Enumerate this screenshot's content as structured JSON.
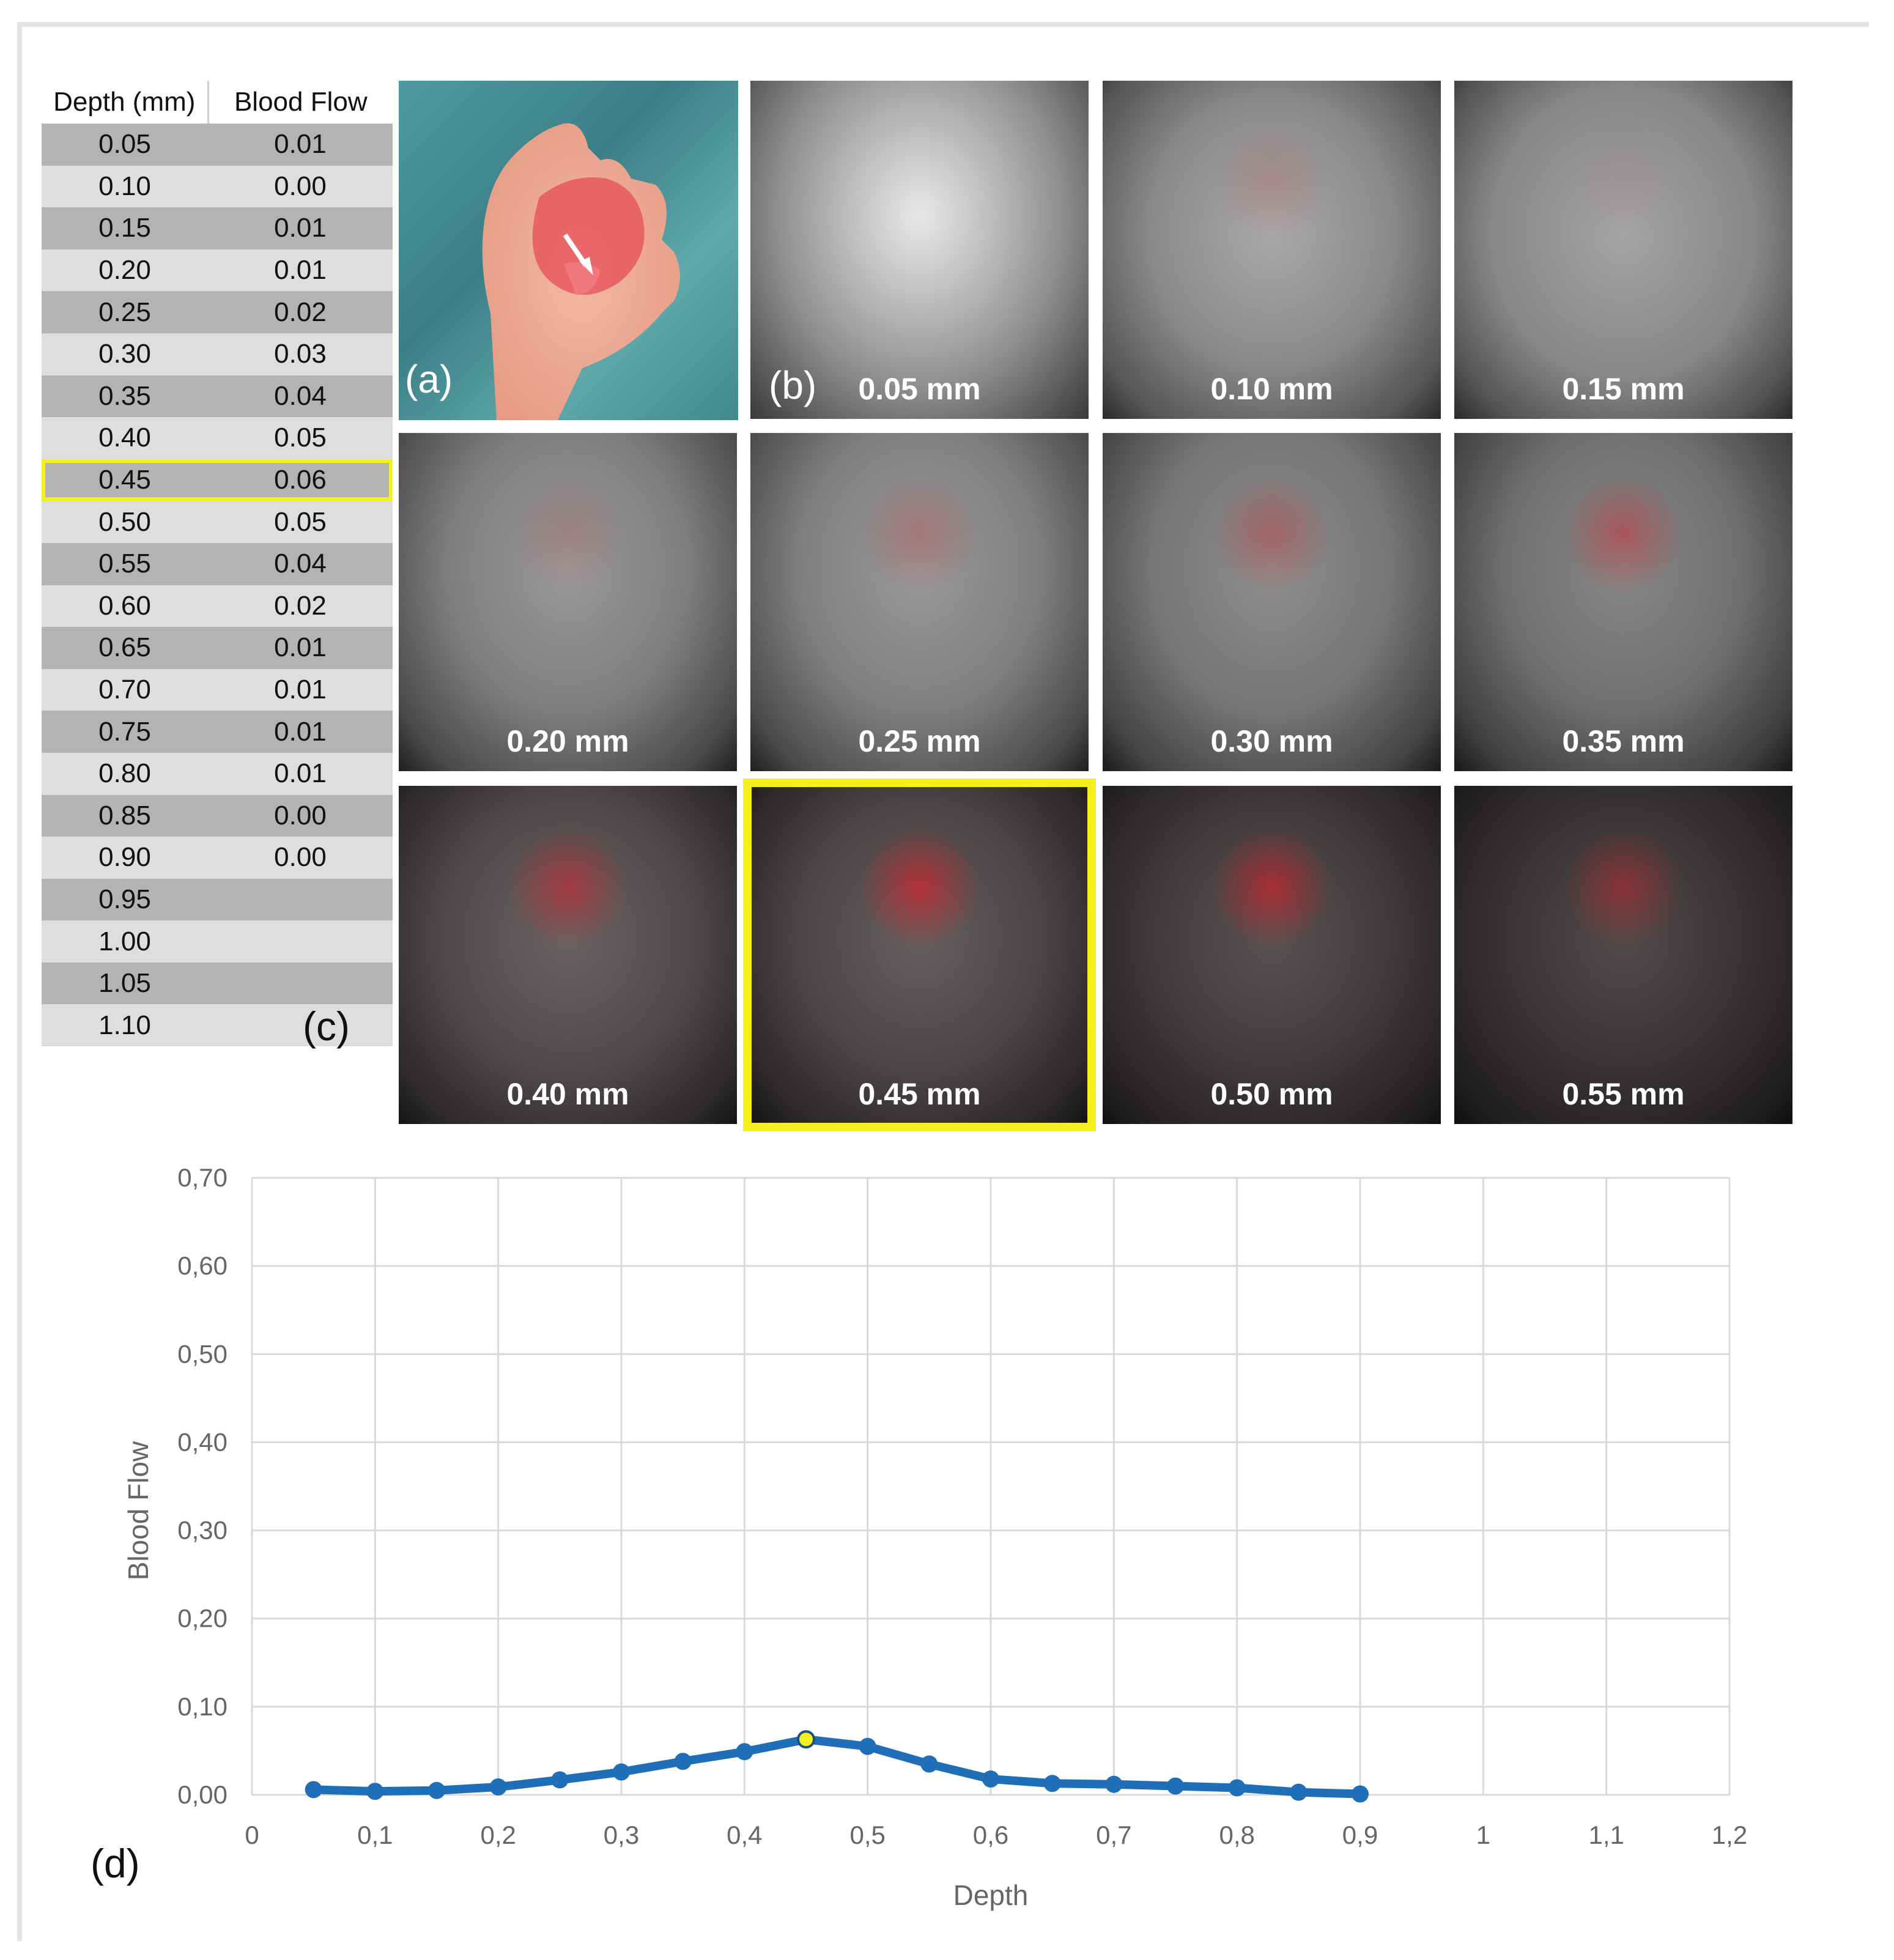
{
  "table": {
    "headers": [
      "Depth (mm)",
      "Blood Flow"
    ],
    "rows": [
      [
        "0.05",
        "0.01"
      ],
      [
        "0.10",
        "0.00"
      ],
      [
        "0.15",
        "0.01"
      ],
      [
        "0.20",
        "0.01"
      ],
      [
        "0.25",
        "0.02"
      ],
      [
        "0.30",
        "0.03"
      ],
      [
        "0.35",
        "0.04"
      ],
      [
        "0.40",
        "0.05"
      ],
      [
        "0.45",
        "0.06"
      ],
      [
        "0.50",
        "0.05"
      ],
      [
        "0.55",
        "0.04"
      ],
      [
        "0.60",
        "0.02"
      ],
      [
        "0.65",
        "0.01"
      ],
      [
        "0.70",
        "0.01"
      ],
      [
        "0.75",
        "0.01"
      ],
      [
        "0.80",
        "0.01"
      ],
      [
        "0.85",
        "0.00"
      ],
      [
        "0.90",
        "0.00"
      ],
      [
        "0.95",
        ""
      ],
      [
        "1.00",
        ""
      ],
      [
        "1.05",
        ""
      ],
      [
        "1.10",
        ""
      ]
    ],
    "selected_row": 8,
    "label": "(c)"
  },
  "photo": {
    "label": "(a)"
  },
  "tiles": {
    "label": "(b)",
    "captions": [
      "0.05 mm",
      "0.10 mm",
      "0.15 mm",
      "0.20 mm",
      "0.25 mm",
      "0.30 mm",
      "0.35 mm",
      "0.40 mm",
      "0.45 mm",
      "0.50 mm",
      "0.55 mm"
    ],
    "selected_index": 8
  },
  "colors": {
    "highlight": "#f5f01c",
    "series": "#1f6fb8",
    "grid": "#d9d9d9",
    "signal": "#d4202a"
  },
  "chart_data": {
    "type": "line",
    "label": "(d)",
    "xlabel": "Depth",
    "ylabel": "Blood Flow",
    "xlim": [
      0,
      1.2
    ],
    "ylim": [
      0,
      0.7
    ],
    "xticks": [
      "0",
      "0,1",
      "0,2",
      "0,3",
      "0,4",
      "0,5",
      "0,6",
      "0,7",
      "0,8",
      "0,9",
      "1",
      "1,1",
      "1,2"
    ],
    "yticks": [
      "0,00",
      "0,10",
      "0,20",
      "0,30",
      "0,40",
      "0,50",
      "0,60",
      "0,70"
    ],
    "grid": true,
    "x": [
      0.05,
      0.1,
      0.15,
      0.2,
      0.25,
      0.3,
      0.35,
      0.4,
      0.45,
      0.5,
      0.55,
      0.6,
      0.65,
      0.7,
      0.75,
      0.8,
      0.85,
      0.9
    ],
    "y": [
      0.006,
      0.004,
      0.005,
      0.009,
      0.017,
      0.026,
      0.038,
      0.049,
      0.063,
      0.055,
      0.035,
      0.018,
      0.013,
      0.012,
      0.01,
      0.008,
      0.003,
      0.001
    ],
    "highlight_x": 0.45
  }
}
